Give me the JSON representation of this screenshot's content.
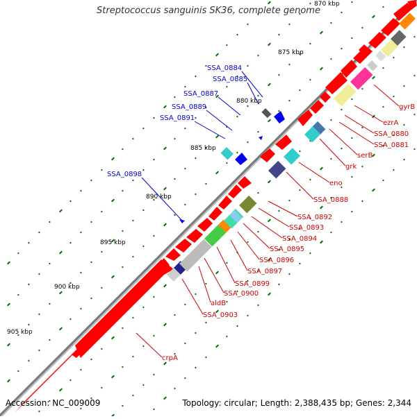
{
  "title": "Streptococcus sanguinis SK36, complete genome",
  "footer": {
    "accession": "Accession: NC_009009",
    "summary": "Topology: circular; Length: 2,388,435 bp; Genes: 2,344"
  },
  "colors": {
    "backbone": "#8c8c8c",
    "feature_red": "#ff0000",
    "label_blue": "#0000cc",
    "label_red": "#cc0000",
    "tick_green": "#006600"
  },
  "scale_labels": [
    "870 kbp",
    "875 kbp",
    "880 kbp",
    "885 kbp",
    "890 kbp",
    "895 kbp",
    "900 kbp",
    "905 kbp"
  ],
  "blue_labels": [
    "SSA_0884",
    "SSA_0885",
    "SSA_0887",
    "SSA_0889",
    "SSA_0891",
    "SSA_0898"
  ],
  "red_labels": [
    "gyrB",
    "ezrA",
    "SSA_0880",
    "SSA_0881",
    "serB",
    "grk",
    "eno",
    "SSA_0888",
    "SSA_0892",
    "SSA_0893",
    "SSA_0894",
    "SSA_0895",
    "SSA_0896",
    "SSA_0897",
    "SSA_0899",
    "SSA_0900",
    "aldB",
    "SSA_0903",
    "crpA"
  ]
}
